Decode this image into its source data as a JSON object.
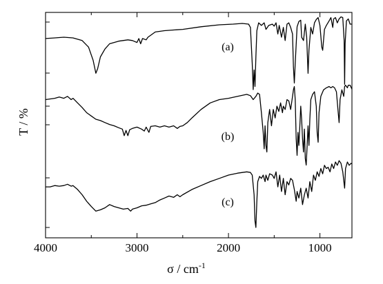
{
  "chart_data": {
    "type": "line",
    "xlabel": "σ / cm",
    "xlabel_superscript": "-1",
    "ylabel": "T / %",
    "xlim": [
      4000,
      650
    ],
    "x_reversed": true,
    "x_ticks": [
      4000,
      3000,
      2000,
      1000
    ],
    "y_ticks_shown_without_labels": true,
    "grid": false,
    "series_labels": [
      "(a)",
      "(b)",
      "(c)"
    ],
    "series": [
      {
        "name": "(a)",
        "offset": 2,
        "points": [
          [
            4000,
            0.78
          ],
          [
            3900,
            0.79
          ],
          [
            3800,
            0.8
          ],
          [
            3700,
            0.79
          ],
          [
            3600,
            0.75
          ],
          [
            3530,
            0.65
          ],
          [
            3480,
            0.45
          ],
          [
            3450,
            0.25
          ],
          [
            3430,
            0.32
          ],
          [
            3400,
            0.5
          ],
          [
            3350,
            0.62
          ],
          [
            3300,
            0.7
          ],
          [
            3200,
            0.74
          ],
          [
            3100,
            0.76
          ],
          [
            3050,
            0.75
          ],
          [
            3000,
            0.72
          ],
          [
            2980,
            0.78
          ],
          [
            2960,
            0.7
          ],
          [
            2940,
            0.78
          ],
          [
            2900,
            0.76
          ],
          [
            2880,
            0.8
          ],
          [
            2800,
            0.88
          ],
          [
            2700,
            0.9
          ],
          [
            2600,
            0.91
          ],
          [
            2500,
            0.92
          ],
          [
            2300,
            0.96
          ],
          [
            2100,
            0.99
          ],
          [
            1950,
            1.0
          ],
          [
            1850,
            1.01
          ],
          [
            1780,
            1.0
          ],
          [
            1760,
            0.95
          ],
          [
            1740,
            0.4
          ],
          [
            1730,
            0.0
          ],
          [
            1720,
            0.3
          ],
          [
            1710,
            0.05
          ],
          [
            1700,
            0.5
          ],
          [
            1690,
            0.9
          ],
          [
            1670,
            1.02
          ],
          [
            1640,
            0.98
          ],
          [
            1610,
            1.02
          ],
          [
            1590,
            0.92
          ],
          [
            1560,
            0.98
          ],
          [
            1520,
            1.0
          ],
          [
            1500,
            0.97
          ],
          [
            1480,
            1.02
          ],
          [
            1460,
            0.85
          ],
          [
            1445,
            0.98
          ],
          [
            1420,
            0.8
          ],
          [
            1400,
            0.95
          ],
          [
            1380,
            0.75
          ],
          [
            1360,
            1.0
          ],
          [
            1340,
            1.02
          ],
          [
            1320,
            0.95
          ],
          [
            1300,
            0.85
          ],
          [
            1290,
            0.35
          ],
          [
            1280,
            0.1
          ],
          [
            1270,
            0.4
          ],
          [
            1250,
            0.96
          ],
          [
            1230,
            1.04
          ],
          [
            1210,
            1.06
          ],
          [
            1200,
            0.8
          ],
          [
            1180,
            0.75
          ],
          [
            1160,
            1.0
          ],
          [
            1145,
            0.8
          ],
          [
            1130,
            0.25
          ],
          [
            1120,
            0.6
          ],
          [
            1100,
            0.95
          ],
          [
            1080,
            0.85
          ],
          [
            1060,
            1.02
          ],
          [
            1040,
            1.07
          ],
          [
            1020,
            1.1
          ],
          [
            1000,
            0.98
          ],
          [
            980,
            0.65
          ],
          [
            970,
            0.6
          ],
          [
            950,
            0.92
          ],
          [
            930,
            0.98
          ],
          [
            900,
            1.05
          ],
          [
            880,
            1.1
          ],
          [
            860,
            0.95
          ],
          [
            850,
            1.08
          ],
          [
            830,
            1.1
          ],
          [
            810,
            1.02
          ],
          [
            790,
            1.08
          ],
          [
            770,
            1.11
          ],
          [
            750,
            1.1
          ],
          [
            735,
            0.75
          ],
          [
            730,
            0.08
          ],
          [
            725,
            0.7
          ],
          [
            710,
            1.05
          ],
          [
            690,
            1.08
          ],
          [
            670,
            1.0
          ],
          [
            650,
            1.0
          ]
        ]
      },
      {
        "name": "(b)",
        "offset": 1,
        "points": [
          [
            4000,
            0.9
          ],
          [
            3900,
            0.92
          ],
          [
            3850,
            0.94
          ],
          [
            3800,
            0.92
          ],
          [
            3760,
            0.95
          ],
          [
            3720,
            0.9
          ],
          [
            3700,
            0.92
          ],
          [
            3650,
            0.85
          ],
          [
            3600,
            0.78
          ],
          [
            3550,
            0.7
          ],
          [
            3500,
            0.65
          ],
          [
            3450,
            0.6
          ],
          [
            3400,
            0.58
          ],
          [
            3350,
            0.55
          ],
          [
            3300,
            0.52
          ],
          [
            3250,
            0.5
          ],
          [
            3200,
            0.47
          ],
          [
            3160,
            0.45
          ],
          [
            3140,
            0.35
          ],
          [
            3120,
            0.43
          ],
          [
            3100,
            0.35
          ],
          [
            3080,
            0.44
          ],
          [
            3050,
            0.46
          ],
          [
            3000,
            0.48
          ],
          [
            2950,
            0.45
          ],
          [
            2920,
            0.42
          ],
          [
            2900,
            0.48
          ],
          [
            2870,
            0.4
          ],
          [
            2850,
            0.49
          ],
          [
            2800,
            0.5
          ],
          [
            2750,
            0.48
          ],
          [
            2700,
            0.5
          ],
          [
            2650,
            0.48
          ],
          [
            2600,
            0.5
          ],
          [
            2560,
            0.46
          ],
          [
            2530,
            0.49
          ],
          [
            2500,
            0.5
          ],
          [
            2450,
            0.55
          ],
          [
            2400,
            0.62
          ],
          [
            2300,
            0.75
          ],
          [
            2200,
            0.85
          ],
          [
            2100,
            0.9
          ],
          [
            2000,
            0.92
          ],
          [
            1900,
            0.95
          ],
          [
            1800,
            0.98
          ],
          [
            1760,
            0.96
          ],
          [
            1730,
            0.9
          ],
          [
            1700,
            0.95
          ],
          [
            1680,
            1.0
          ],
          [
            1660,
            0.98
          ],
          [
            1640,
            0.7
          ],
          [
            1620,
            0.4
          ],
          [
            1610,
            0.15
          ],
          [
            1600,
            0.5
          ],
          [
            1590,
            0.2
          ],
          [
            1580,
            0.1
          ],
          [
            1570,
            0.55
          ],
          [
            1550,
            0.75
          ],
          [
            1530,
            0.5
          ],
          [
            1510,
            0.75
          ],
          [
            1490,
            0.62
          ],
          [
            1470,
            0.8
          ],
          [
            1450,
            0.72
          ],
          [
            1430,
            0.85
          ],
          [
            1410,
            0.7
          ],
          [
            1400,
            0.8
          ],
          [
            1380,
            0.75
          ],
          [
            1360,
            0.9
          ],
          [
            1340,
            0.88
          ],
          [
            1320,
            0.75
          ],
          [
            1300,
            0.95
          ],
          [
            1290,
            1.05
          ],
          [
            1280,
            1.1
          ],
          [
            1270,
            0.9
          ],
          [
            1260,
            0.3
          ],
          [
            1250,
            0.05
          ],
          [
            1240,
            0.4
          ],
          [
            1230,
            0.2
          ],
          [
            1220,
            0.5
          ],
          [
            1210,
            0.8
          ],
          [
            1200,
            0.6
          ],
          [
            1190,
            0.3
          ],
          [
            1180,
            0.1
          ],
          [
            1170,
            0.45
          ],
          [
            1160,
            0.0
          ],
          [
            1150,
            -0.1
          ],
          [
            1140,
            0.2
          ],
          [
            1130,
            0.5
          ],
          [
            1120,
            0.2
          ],
          [
            1110,
            0.6
          ],
          [
            1100,
            0.9
          ],
          [
            1080,
            0.98
          ],
          [
            1060,
            1.02
          ],
          [
            1040,
            0.8
          ],
          [
            1030,
            0.4
          ],
          [
            1020,
            0.25
          ],
          [
            1010,
            0.7
          ],
          [
            990,
            0.95
          ],
          [
            960,
            1.05
          ],
          [
            930,
            1.08
          ],
          [
            900,
            1.1
          ],
          [
            880,
            1.08
          ],
          [
            860,
            1.1
          ],
          [
            840,
            1.08
          ],
          [
            820,
            1.02
          ],
          [
            800,
            0.7
          ],
          [
            790,
            0.55
          ],
          [
            780,
            0.9
          ],
          [
            760,
            1.05
          ],
          [
            740,
            0.95
          ],
          [
            730,
            1.1
          ],
          [
            720,
            1.12
          ],
          [
            700,
            1.08
          ],
          [
            690,
            1.12
          ],
          [
            670,
            1.12
          ],
          [
            650,
            1.06
          ]
        ]
      },
      {
        "name": "(c)",
        "offset": 0,
        "points": [
          [
            4000,
            0.62
          ],
          [
            3950,
            0.62
          ],
          [
            3900,
            0.64
          ],
          [
            3850,
            0.63
          ],
          [
            3800,
            0.64
          ],
          [
            3760,
            0.66
          ],
          [
            3720,
            0.63
          ],
          [
            3700,
            0.64
          ],
          [
            3650,
            0.58
          ],
          [
            3600,
            0.5
          ],
          [
            3550,
            0.4
          ],
          [
            3500,
            0.32
          ],
          [
            3450,
            0.25
          ],
          [
            3400,
            0.27
          ],
          [
            3350,
            0.3
          ],
          [
            3300,
            0.35
          ],
          [
            3250,
            0.32
          ],
          [
            3200,
            0.3
          ],
          [
            3150,
            0.28
          ],
          [
            3100,
            0.29
          ],
          [
            3070,
            0.25
          ],
          [
            3050,
            0.28
          ],
          [
            3000,
            0.3
          ],
          [
            2950,
            0.33
          ],
          [
            2900,
            0.34
          ],
          [
            2850,
            0.36
          ],
          [
            2800,
            0.38
          ],
          [
            2750,
            0.42
          ],
          [
            2700,
            0.45
          ],
          [
            2650,
            0.48
          ],
          [
            2600,
            0.46
          ],
          [
            2560,
            0.5
          ],
          [
            2530,
            0.47
          ],
          [
            2500,
            0.5
          ],
          [
            2400,
            0.58
          ],
          [
            2300,
            0.64
          ],
          [
            2200,
            0.7
          ],
          [
            2100,
            0.75
          ],
          [
            2000,
            0.8
          ],
          [
            1900,
            0.83
          ],
          [
            1800,
            0.85
          ],
          [
            1760,
            0.84
          ],
          [
            1740,
            0.8
          ],
          [
            1720,
            0.5
          ],
          [
            1710,
            0.1
          ],
          [
            1700,
            0.0
          ],
          [
            1690,
            0.4
          ],
          [
            1680,
            0.7
          ],
          [
            1660,
            0.78
          ],
          [
            1640,
            0.75
          ],
          [
            1620,
            0.8
          ],
          [
            1600,
            0.7
          ],
          [
            1590,
            0.8
          ],
          [
            1570,
            0.72
          ],
          [
            1550,
            0.82
          ],
          [
            1520,
            0.8
          ],
          [
            1500,
            0.75
          ],
          [
            1480,
            0.85
          ],
          [
            1460,
            0.62
          ],
          [
            1440,
            0.8
          ],
          [
            1420,
            0.55
          ],
          [
            1400,
            0.75
          ],
          [
            1380,
            0.5
          ],
          [
            1360,
            0.7
          ],
          [
            1340,
            0.65
          ],
          [
            1320,
            0.75
          ],
          [
            1300,
            0.72
          ],
          [
            1280,
            0.58
          ],
          [
            1260,
            0.4
          ],
          [
            1250,
            0.55
          ],
          [
            1230,
            0.45
          ],
          [
            1210,
            0.6
          ],
          [
            1190,
            0.35
          ],
          [
            1170,
            0.5
          ],
          [
            1150,
            0.6
          ],
          [
            1130,
            0.45
          ],
          [
            1110,
            0.7
          ],
          [
            1090,
            0.55
          ],
          [
            1070,
            0.8
          ],
          [
            1050,
            0.72
          ],
          [
            1030,
            0.85
          ],
          [
            1010,
            0.78
          ],
          [
            990,
            0.9
          ],
          [
            970,
            0.82
          ],
          [
            950,
            0.95
          ],
          [
            930,
            0.9
          ],
          [
            910,
            0.92
          ],
          [
            890,
            0.85
          ],
          [
            870,
            0.97
          ],
          [
            850,
            0.9
          ],
          [
            830,
            1.0
          ],
          [
            810,
            0.95
          ],
          [
            790,
            1.02
          ],
          [
            770,
            0.98
          ],
          [
            750,
            0.85
          ],
          [
            730,
            0.6
          ],
          [
            720,
            0.9
          ],
          [
            700,
            1.0
          ],
          [
            680,
            0.95
          ],
          [
            660,
            0.98
          ],
          [
            650,
            0.97
          ]
        ]
      }
    ]
  }
}
